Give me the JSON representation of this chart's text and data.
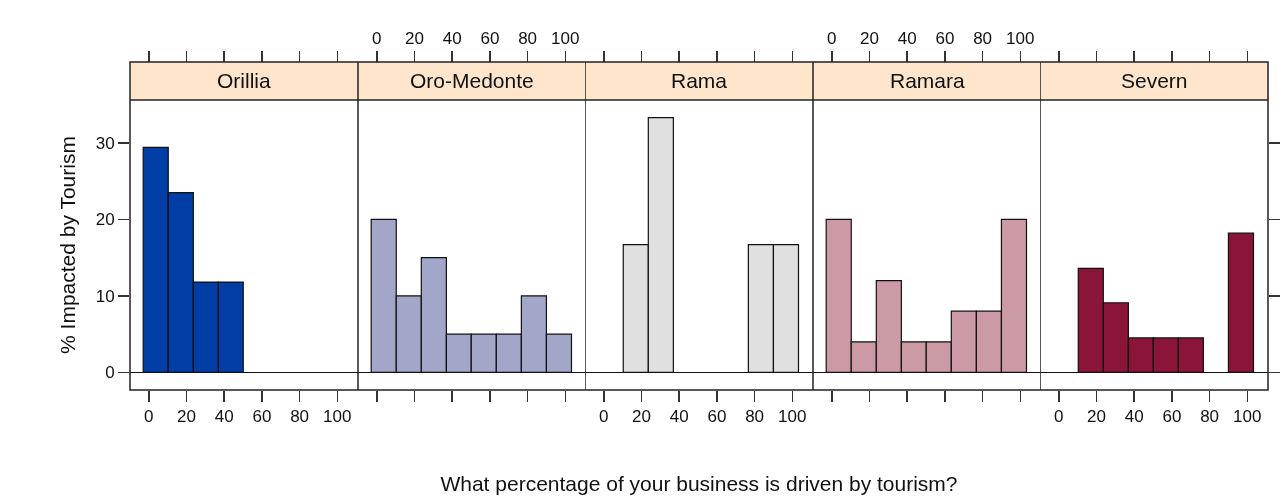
{
  "chart_data": [
    {
      "type": "histogram",
      "title": "Orillia",
      "ylabel": "% Impacted by Tourism",
      "bins": [
        -3,
        10.3,
        23.6,
        36.9,
        50.1,
        63.4,
        76.7,
        90,
        103.3
      ],
      "values": [
        29.4,
        23.5,
        11.8,
        11.8,
        0,
        0,
        0,
        0
      ],
      "color": "#003da5",
      "xlim": [
        -10,
        111
      ],
      "xticks": [
        0,
        20,
        40,
        60,
        80,
        100
      ],
      "ylim": [
        -2.3,
        35.6
      ],
      "yticks": [
        0,
        10,
        20,
        30
      ]
    },
    {
      "type": "histogram",
      "title": "Oro-Medonte",
      "bins": [
        -3,
        10.3,
        23.6,
        36.9,
        50.1,
        63.4,
        76.7,
        90,
        103.3
      ],
      "values": [
        20,
        10,
        15,
        5,
        5,
        5,
        10,
        5
      ],
      "color": "#a2a6c8",
      "xlim": [
        -10,
        111
      ],
      "xticks": [
        0,
        20,
        40,
        60,
        80,
        100
      ],
      "ylim": [
        -2.3,
        35.6
      ],
      "yticks": [
        0,
        10,
        20,
        30
      ],
      "tick_labels": "x"
    },
    {
      "type": "histogram",
      "title": "Rama",
      "xlabel": "What percentage of your business is driven by tourism?",
      "bins": [
        -3,
        10.3,
        23.6,
        36.9,
        50.1,
        63.4,
        76.7,
        90,
        103.3
      ],
      "values": [
        0,
        16.7,
        33.3,
        0,
        0,
        0,
        16.7,
        16.7
      ],
      "color": "#e0e0e0",
      "xlim": [
        -10,
        111
      ],
      "xticks": [
        0,
        20,
        40,
        60,
        80,
        100
      ],
      "ylim": [
        -2.3,
        35.6
      ],
      "yticks": [
        0,
        10,
        20,
        30
      ],
      "tick_labels": "x"
    },
    {
      "type": "histogram",
      "title": "Ramara",
      "bins": [
        -3,
        10.3,
        23.6,
        36.9,
        50.1,
        63.4,
        76.7,
        90,
        103.3
      ],
      "values": [
        20,
        4,
        12,
        4,
        4,
        8,
        8,
        20
      ],
      "color": "#cc9aa4",
      "xlim": [
        -10,
        111
      ],
      "xticks": [
        0,
        20,
        40,
        60,
        80,
        100
      ],
      "ylim": [
        -2.3,
        35.6
      ],
      "yticks": [
        0,
        10,
        20,
        30
      ],
      "tick_labels": "x"
    },
    {
      "type": "histogram",
      "title": "Severn",
      "bins": [
        -3,
        10.3,
        23.6,
        36.9,
        50.1,
        63.4,
        76.7,
        90,
        103.3
      ],
      "values": [
        0,
        13.6,
        9.1,
        4.5,
        4.5,
        4.5,
        0,
        18.2
      ],
      "color": "#8b1538",
      "xlim": [
        -10,
        111
      ],
      "xticks": [
        0,
        20,
        40,
        60,
        80,
        100
      ],
      "ylim": [
        -2.3,
        35.6
      ],
      "yticks": [
        0,
        10,
        20,
        30
      ],
      "tick_labels": "x"
    }
  ]
}
